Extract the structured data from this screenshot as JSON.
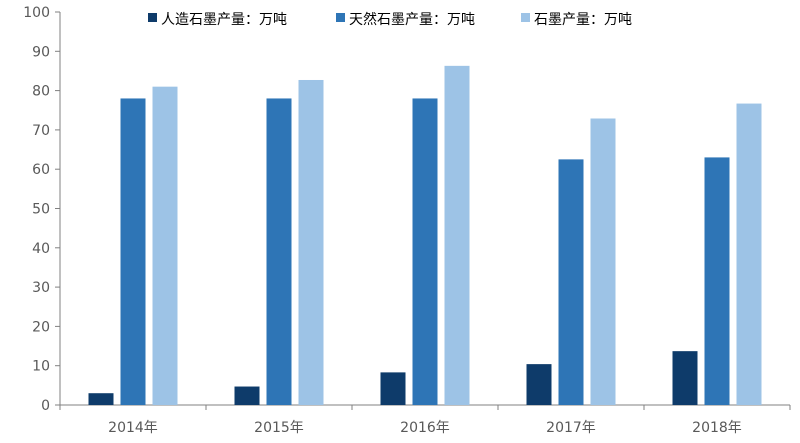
{
  "chart_data": {
    "type": "bar",
    "categories": [
      "2014年",
      "2015年",
      "2016年",
      "2017年",
      "2018年"
    ],
    "series": [
      {
        "name": "人造石墨产量：万吨",
        "color": "#0e3b6a",
        "values": [
          3,
          4.7,
          8.3,
          10.4,
          13.7
        ]
      },
      {
        "name": "天然石墨产量：万吨",
        "color": "#2e75b6",
        "values": [
          78,
          78,
          78,
          62.5,
          63
        ]
      },
      {
        "name": "石墨产量：万吨",
        "color": "#9dc3e6",
        "values": [
          81,
          82.7,
          86.3,
          72.9,
          76.7
        ]
      }
    ],
    "title": "",
    "xlabel": "",
    "ylabel": "",
    "ylim": [
      0,
      100
    ],
    "yticks": [
      0,
      10,
      20,
      30,
      40,
      50,
      60,
      70,
      80,
      90,
      100
    ],
    "grid": false,
    "legend_position": "top"
  }
}
